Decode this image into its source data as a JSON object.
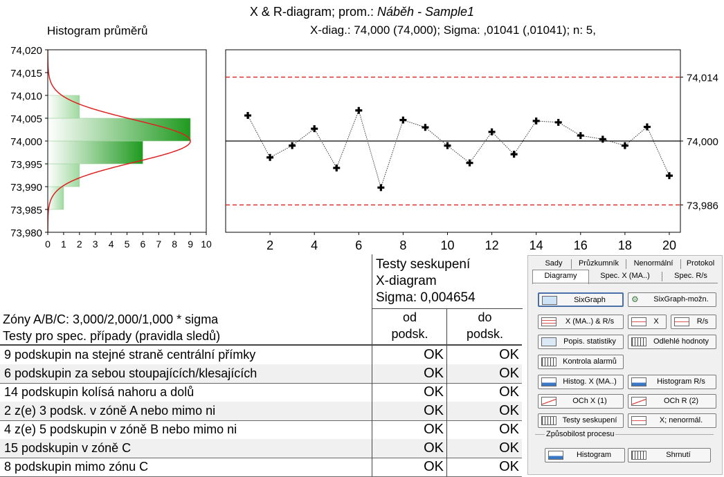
{
  "chart": {
    "title_prefix": "X & R-diagram; prom.:",
    "title_var": "Náběh - Sample1",
    "subtitle": "X-diag.: 74,000 (74,000); Sigma: ,01041 (,01041); n: 5,",
    "hist_title": "Histogram průměrů"
  },
  "chart_data": [
    {
      "type": "bar",
      "orientation": "horizontal",
      "title": "Histogram průměrů",
      "bins": [
        [
          73.98,
          73.985
        ],
        [
          73.985,
          73.99
        ],
        [
          73.99,
          73.995
        ],
        [
          73.995,
          74.0
        ],
        [
          74.0,
          74.005
        ],
        [
          74.005,
          74.01
        ],
        [
          74.01,
          74.015
        ],
        [
          74.015,
          74.02
        ]
      ],
      "values": [
        0,
        1,
        2,
        6,
        9,
        2,
        0,
        0
      ],
      "xlim": [
        0,
        10
      ],
      "ylim": [
        73.98,
        74.02
      ],
      "xticks": [
        "0",
        "1",
        "2",
        "3",
        "4",
        "5",
        "6",
        "7",
        "8",
        "9",
        "10"
      ],
      "yticks": [
        "73,980",
        "73,985",
        "73,990",
        "73,995",
        "74,000",
        "74,005",
        "74,010",
        "74,015",
        "74,020"
      ],
      "normal_curve": {
        "mean": 74.0,
        "sigma": 0.004654,
        "peak": 9
      },
      "bar_color": "#2ca02c",
      "curve_color": "#e02020"
    },
    {
      "type": "line",
      "x": [
        1,
        2,
        3,
        4,
        5,
        6,
        7,
        8,
        9,
        10,
        11,
        12,
        13,
        14,
        15,
        16,
        17,
        18,
        19,
        20
      ],
      "y": [
        74.0056,
        73.9964,
        73.999,
        74.0027,
        73.9941,
        74.0067,
        73.9898,
        74.0046,
        74.003,
        73.999,
        73.9952,
        74.002,
        73.9971,
        74.0044,
        74.0041,
        74.0012,
        74.0004,
        73.999,
        74.0031,
        73.9924
      ],
      "xlim": [
        0,
        20.5
      ],
      "ylim": [
        73.98,
        74.02
      ],
      "xticks": [
        "2",
        "4",
        "6",
        "8",
        "10",
        "12",
        "14",
        "16",
        "18",
        "20"
      ],
      "right_labels": [
        "74,014",
        "74,000",
        "73,986"
      ],
      "ucl": 74.014,
      "center": 74.0,
      "lcl": 73.986,
      "limit_color": "#e02020",
      "grid": false
    }
  ],
  "tests": {
    "title_lines": [
      "Testy seskupení",
      "X-diagram",
      "Sigma: 0,004654"
    ],
    "zones_lines": [
      "Zóny A/B/C: 3,000/2,000/1,000  * sigma",
      "Testy pro spec. případy (pravidla sledů)"
    ],
    "col1": [
      "od",
      "podsk."
    ],
    "col2": [
      "do",
      "podsk."
    ],
    "rows": [
      {
        "label": "9 podskupin na stejné straně centrální přímky",
        "from": "OK",
        "to": "OK"
      },
      {
        "label": "6 podskupin za sebou stoupajících/klesajících",
        "from": "OK",
        "to": "OK"
      },
      {
        "label": "14 podskupin kolísá nahoru a dolů",
        "from": "OK",
        "to": "OK"
      },
      {
        "label": "2 z(e) 3 podsk. v zóně A nebo mimo ni",
        "from": "OK",
        "to": "OK"
      },
      {
        "label": "4 z(e) 5 podskupin v zóně B nebo mimo ni",
        "from": "OK",
        "to": "OK"
      },
      {
        "label": "15 podskupin v zóně C",
        "from": "OK",
        "to": "OK"
      },
      {
        "label": "8 podskupin mimo zónu C",
        "from": "OK",
        "to": "OK"
      }
    ]
  },
  "panel": {
    "tabs_row1": [
      "Sady",
      "Průzkumník",
      "Nenormální",
      "Protokol"
    ],
    "tabs_row2": [
      "Diagramy",
      "Spec. X (MA..)",
      "Spec. R/s"
    ],
    "buttons": {
      "sixgraph": "SixGraph",
      "sixgraph_opts": "SixGraph-možn.",
      "xma_rs": "X (MA..) & R/s",
      "x": "X",
      "rs": "R/s",
      "popis": "Popis. statistiky",
      "odlehle": "Odlehlé hodnoty",
      "kontrola": "Kontrola alarmů",
      "histog_x": "Histog. X (MA..)",
      "histog_rs": "Histogram R/s",
      "och_x": "OCh X (1)",
      "och_r": "OCh R (2)",
      "testy": "Testy seskupení",
      "x_nenorm": "X; nenormál.",
      "histogram": "Histogram",
      "shrnuti": "Shrnutí"
    },
    "group_label": "Způsobilost procesu"
  }
}
